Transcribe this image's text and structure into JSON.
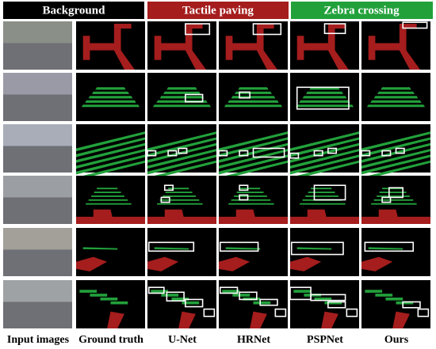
{
  "header": {
    "legend": [
      "Background",
      "Tactile paving",
      "Zebra crossing"
    ]
  },
  "columns": [
    "Input images",
    "Ground truth",
    "U-Net",
    "HRNet",
    "PSPNet",
    "Ours"
  ]
}
